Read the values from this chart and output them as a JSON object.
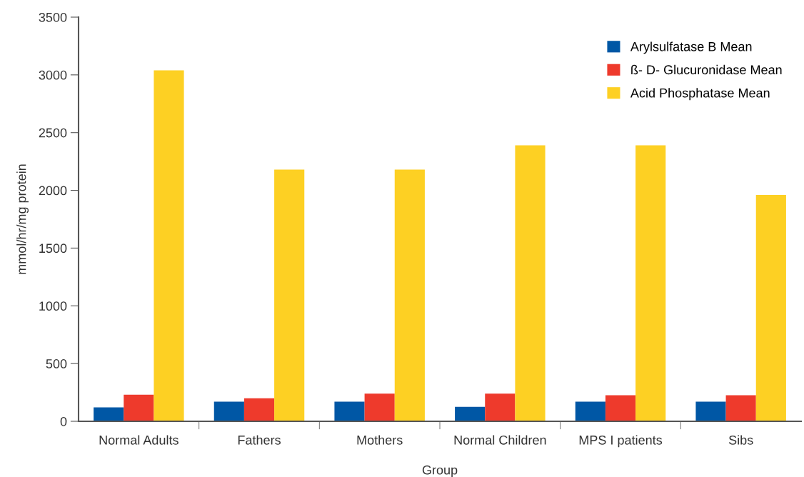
{
  "chart_data": {
    "type": "bar",
    "xlabel": "Group",
    "ylabel": "mmol/hr/mg protein",
    "categories": [
      "Normal Adults",
      "Fathers",
      "Mothers",
      "Normal Children",
      "MPS I patients",
      "Sibs"
    ],
    "series": [
      {
        "name": "Arylsulfatase B Mean",
        "color": "#0057a5",
        "values": [
          120,
          170,
          170,
          125,
          170,
          170
        ]
      },
      {
        "name": "ß- D- Glucuronidase Mean",
        "color": "#ee3a2c",
        "values": [
          230,
          200,
          240,
          240,
          225,
          225
        ]
      },
      {
        "name": "Acid Phosphatase Mean",
        "color": "#fdd023",
        "values": [
          3040,
          2180,
          2180,
          2390,
          2390,
          1960
        ]
      }
    ],
    "ylim": [
      0,
      3500
    ],
    "yticks": [
      0,
      500,
      1000,
      1500,
      2000,
      2500,
      3000,
      3500
    ],
    "grid": false,
    "legend": "top right"
  }
}
